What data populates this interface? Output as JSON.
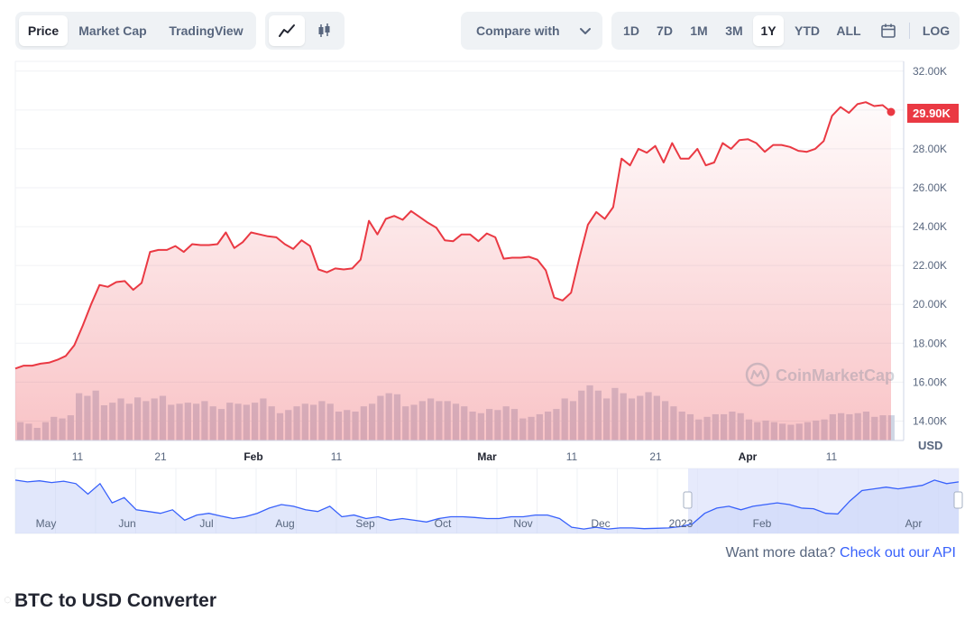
{
  "toolbar": {
    "view_tabs": [
      "Price",
      "Market Cap",
      "TradingView"
    ],
    "active_view": "Price",
    "chart_icons": [
      "line-chart-icon",
      "candlestick-icon"
    ],
    "compare_label": "Compare with",
    "ranges": [
      "1D",
      "7D",
      "1M",
      "3M",
      "1Y",
      "YTD",
      "ALL"
    ],
    "active_range": "1Y",
    "log_label": "LOG"
  },
  "watermark": "CoinMarketCap",
  "current_price_label": "29.90K",
  "footer": {
    "api_prefix": "Want more data?",
    "api_link": "Check out our API",
    "converter_title": "BTC to USD Converter"
  },
  "colors": {
    "line": "#ea3943",
    "volume": "#cfd6e4",
    "navigator_fill": "#dde3fb",
    "navigator_line": "#3861fb",
    "link": "#3861fb"
  },
  "chart_data": {
    "type": "line",
    "y_axis_unit": "USD",
    "ylim": [
      13000,
      32500
    ],
    "y_ticks": [
      14000,
      16000,
      18000,
      20000,
      22000,
      24000,
      26000,
      28000,
      30000,
      32000
    ],
    "y_tick_labels": [
      "14.00K",
      "16.00K",
      "18.00K",
      "20.00K",
      "22.00K",
      "24.00K",
      "26.00K",
      "28.00K",
      "30.00K",
      "32.00K"
    ],
    "x_tick_labels": [
      "11",
      "21",
      "Feb",
      "11",
      "Mar",
      "11",
      "21",
      "Apr",
      "11"
    ],
    "price_series": [
      16700,
      16850,
      16850,
      16950,
      17000,
      17150,
      17350,
      17900,
      18900,
      20000,
      21000,
      20900,
      21150,
      21200,
      20750,
      21100,
      22700,
      22800,
      22800,
      23000,
      22700,
      23100,
      23050,
      23050,
      23100,
      23700,
      22900,
      23200,
      23700,
      23600,
      23500,
      23450,
      23100,
      22850,
      23300,
      23000,
      21800,
      21650,
      21850,
      21800,
      21850,
      22300,
      24300,
      23600,
      24400,
      24550,
      24350,
      24800,
      24500,
      24200,
      23950,
      23300,
      23250,
      23600,
      23600,
      23250,
      23650,
      23450,
      22350,
      22400,
      22400,
      22450,
      22300,
      21750,
      20350,
      20200,
      20600,
      22400,
      24100,
      24750,
      24400,
      25000,
      27500,
      27150,
      28000,
      27800,
      28150,
      27300,
      28300,
      27500,
      27500,
      28000,
      27150,
      27300,
      28300,
      28000,
      28450,
      28500,
      28300,
      27850,
      28200,
      28200,
      28100,
      27900,
      27850,
      28000,
      28400,
      29700,
      30150,
      29850,
      30300,
      30400,
      30200,
      30250,
      29900
    ],
    "volume_series": [
      35,
      32,
      24,
      35,
      45,
      42,
      48,
      90,
      85,
      95,
      67,
      72,
      80,
      70,
      82,
      75,
      80,
      85,
      68,
      70,
      72,
      70,
      75,
      65,
      60,
      72,
      70,
      68,
      72,
      80,
      65,
      52,
      58,
      65,
      70,
      68,
      75,
      70,
      55,
      58,
      55,
      65,
      70,
      85,
      90,
      88,
      65,
      68,
      75,
      80,
      75,
      75,
      70,
      65,
      55,
      52,
      60,
      58,
      65,
      60,
      42,
      45,
      50,
      55,
      60,
      80,
      75,
      95,
      105,
      95,
      80,
      100,
      90,
      80,
      85,
      92,
      85,
      75,
      65,
      55,
      50,
      40,
      45,
      50,
      50,
      55,
      52,
      40,
      35,
      38,
      35,
      32,
      30,
      32,
      35,
      38,
      40,
      50,
      52,
      50,
      52,
      55,
      45,
      48,
      48
    ],
    "navigator_labels": [
      "May",
      "Jun",
      "Jul",
      "Aug",
      "Sep",
      "Oct",
      "Nov",
      "Dec",
      "2023",
      "Feb",
      "Apr"
    ],
    "navigator_series": [
      30500,
      30000,
      30300,
      29800,
      30200,
      29500,
      26500,
      29500,
      24000,
      25500,
      22000,
      21500,
      21000,
      22000,
      19000,
      20500,
      21000,
      20200,
      19500,
      20000,
      21000,
      22500,
      23500,
      23000,
      22000,
      21500,
      23000,
      20000,
      20500,
      19500,
      20000,
      19000,
      19500,
      19000,
      18500,
      19500,
      20000,
      20000,
      19800,
      19500,
      19500,
      20000,
      20000,
      20500,
      20500,
      19500,
      17000,
      16500,
      17000,
      16500,
      16800,
      16800,
      16600,
      16700,
      16800,
      17200,
      18000,
      21000,
      22500,
      23000,
      22000,
      23000,
      23500,
      24000,
      23500,
      22500,
      22300,
      21000,
      20800,
      24500,
      27500,
      28000,
      28500,
      28000,
      28500,
      29000,
      30500,
      29500,
      30000
    ]
  }
}
